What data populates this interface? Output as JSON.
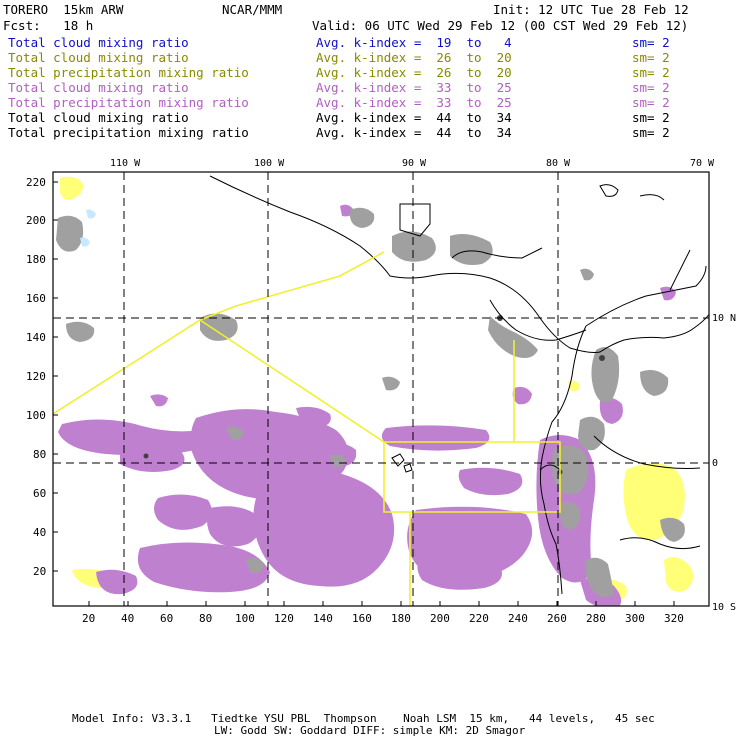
{
  "header": {
    "model": "TORERO  15km ARW",
    "org": "NCAR/MMM",
    "init": "Init: 12 UTC Tue 28 Feb 12",
    "fcst": "Fcst:   18 h",
    "valid": "Valid: 06 UTC Wed 29 Feb 12 (00 CST Wed 29 Feb 12)"
  },
  "legend_rows": [
    {
      "field": "Total cloud mixing ratio",
      "range": "Avg. k-index =  19  to   4",
      "sm": "sm= 2",
      "color": "#1010c8"
    },
    {
      "field": "Total cloud mixing ratio",
      "range": "Avg. k-index =  26  to  20",
      "sm": "sm= 2",
      "color": "#8a8a00"
    },
    {
      "field": "Total precipitation mixing ratio",
      "range": "Avg. k-index =  26  to  20",
      "sm": "sm= 2",
      "color": "#8a8a00"
    },
    {
      "field": "Total cloud mixing ratio",
      "range": "Avg. k-index =  33  to  25",
      "sm": "sm= 2",
      "color": "#b060c0"
    },
    {
      "field": "Total precipitation mixing ratio",
      "range": "Avg. k-index =  33  to  25",
      "sm": "sm= 2",
      "color": "#b060c0"
    },
    {
      "field": "Total cloud mixing ratio",
      "range": "Avg. k-index =  44  to  34",
      "sm": "sm= 2",
      "color": "#000000"
    },
    {
      "field": "Total precipitation mixing ratio",
      "range": "Avg. k-index =  44  to  34",
      "sm": "sm= 2",
      "color": "#000000"
    }
  ],
  "map": {
    "top_lon_labels": [
      "110 W",
      "100 W",
      "90 W",
      "80 W",
      "70 W"
    ],
    "right_lat_labels": [
      "10 N",
      "0",
      "10 S"
    ],
    "left_y_labels": [
      "220",
      "200",
      "180",
      "160",
      "140",
      "120",
      "100",
      "80",
      "60",
      "40",
      "20"
    ],
    "bottom_x_labels": [
      "20",
      "40",
      "60",
      "80",
      "100",
      "120",
      "140",
      "160",
      "180",
      "200",
      "220",
      "240",
      "260",
      "280",
      "300",
      "320"
    ],
    "colors": {
      "yellow_fill": "#ffff78",
      "purple_fill": "#c080d0",
      "gray_fill": "#a0a0a0",
      "track": "#f0f030",
      "coast": "#000000"
    }
  },
  "footer": {
    "line1": "Model Info: V3.3.1   Tiedtke YSU PBL  Thompson    Noah LSM  15 km,   44 levels,   45 sec",
    "line2": "LW: Godd SW: Goddard DIFF: simple KM: 2D Smagor"
  }
}
